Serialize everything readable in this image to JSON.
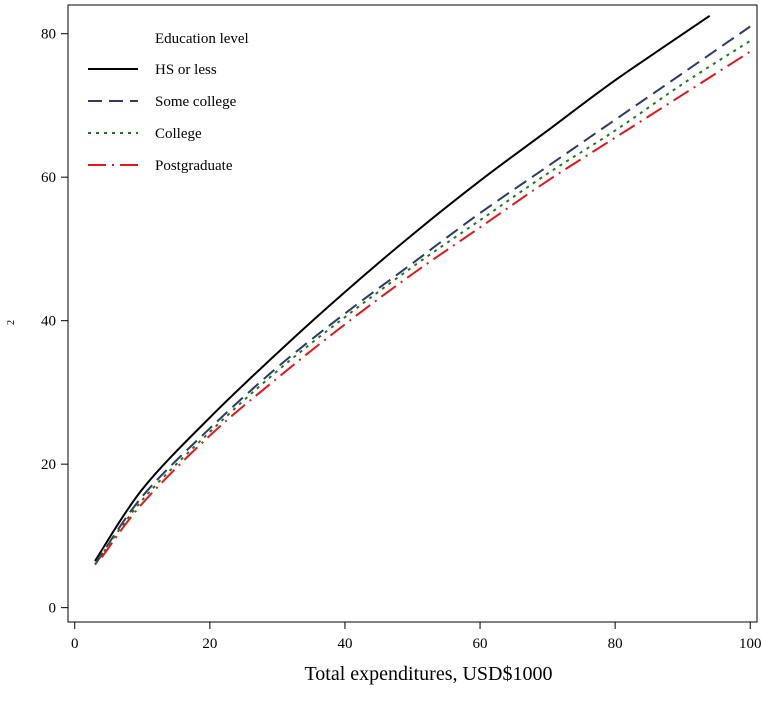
{
  "chart_data": {
    "type": "line",
    "xlabel": "Total expenditures, USD$1000",
    "ylabel": "2",
    "xlim": [
      -1,
      101
    ],
    "ylim": [
      -2,
      84
    ],
    "x_ticks": [
      0,
      20,
      40,
      60,
      80,
      100
    ],
    "y_ticks": [
      0,
      20,
      40,
      60,
      80
    ],
    "grid": false,
    "legend": {
      "title": "Education level",
      "position": "top-left",
      "entries": [
        "HS or less",
        "Some college",
        "College",
        "Postgraduate"
      ]
    },
    "series": [
      {
        "name": "HS or less",
        "color": "#000000",
        "dash": "solid",
        "x": [
          3,
          10,
          20,
          30,
          40,
          50,
          60,
          70,
          80,
          94
        ],
        "y": [
          6.5,
          16.5,
          26.5,
          35.5,
          44,
          52,
          59.5,
          66.5,
          73.5,
          82.5
        ]
      },
      {
        "name": "Some college",
        "color": "#2b3a67",
        "dash": "long-dash",
        "x": [
          3,
          10,
          20,
          30,
          40,
          50,
          60,
          70,
          80,
          90,
          100
        ],
        "y": [
          6,
          15.5,
          25,
          33.5,
          41,
          48,
          55,
          61.5,
          68,
          74.5,
          81
        ]
      },
      {
        "name": "College",
        "color": "#1a7a1a",
        "dash": "dotted",
        "x": [
          3,
          10,
          20,
          30,
          40,
          50,
          60,
          70,
          80,
          90,
          100
        ],
        "y": [
          6,
          15,
          24.5,
          33,
          40.5,
          47.5,
          54,
          60.5,
          66.5,
          73,
          79
        ]
      },
      {
        "name": "Postgraduate",
        "color": "#e8141b",
        "dash": "dash-dot",
        "x": [
          4,
          10,
          20,
          30,
          40,
          50,
          60,
          70,
          80,
          90,
          100
        ],
        "y": [
          7,
          14.5,
          24,
          32,
          39.5,
          46.5,
          53,
          59.5,
          65.5,
          71.5,
          77.5
        ]
      }
    ]
  }
}
